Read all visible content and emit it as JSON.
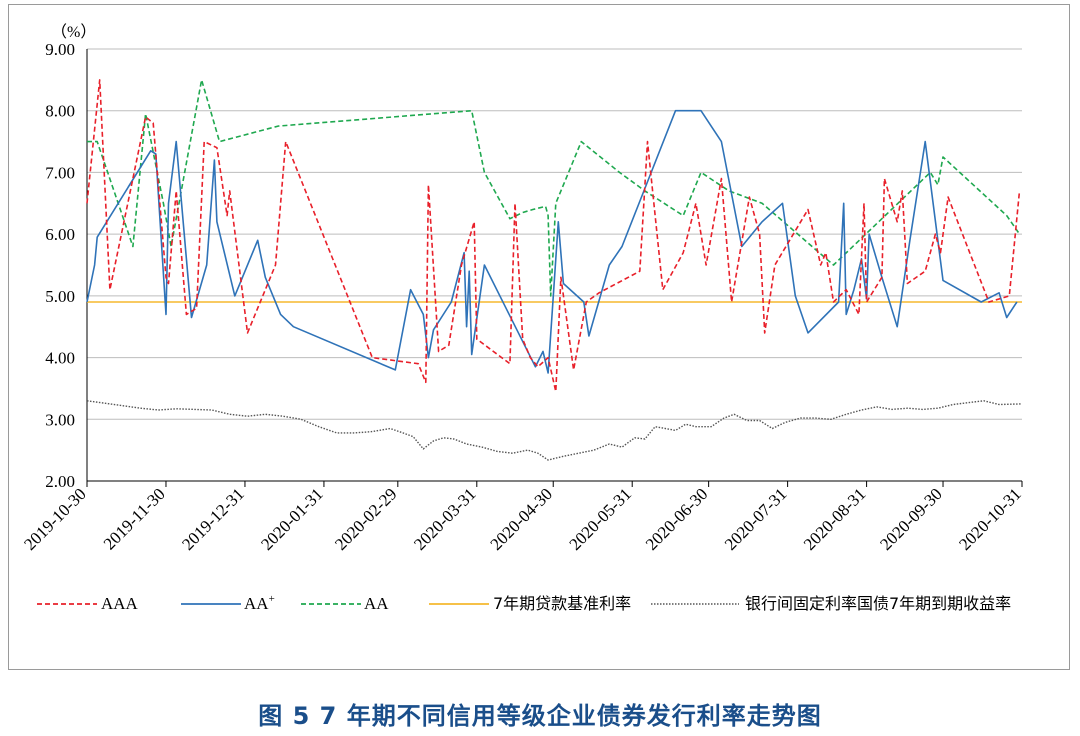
{
  "caption": "图 5 7 年期不同信用等级企业债券发行利率走势图",
  "chart_data": {
    "type": "line",
    "title": "",
    "y_unit": "（%）",
    "ylim": [
      2.0,
      9.0
    ],
    "yticks": [
      "2.00",
      "3.00",
      "4.00",
      "5.00",
      "6.00",
      "7.00",
      "8.00",
      "9.00"
    ],
    "xlim": [
      "2019-10-30",
      "2020-10-31"
    ],
    "xticks": [
      "2019-10-30",
      "2019-11-30",
      "2019-12-31",
      "2020-01-31",
      "2020-02-29",
      "2020-03-31",
      "2020-04-30",
      "2020-05-31",
      "2020-06-30",
      "2020-07-31",
      "2020-08-31",
      "2020-09-30",
      "2020-10-31"
    ],
    "grid": "horizontal",
    "legend_position": "bottom",
    "series": [
      {
        "name": "AAA",
        "legend_label": "AAA",
        "sup": "",
        "color": "#e8202a",
        "style": "dash",
        "points": [
          [
            "2019-10-30",
            6.5
          ],
          [
            "2019-11-04",
            8.5
          ],
          [
            "2019-11-08",
            5.1
          ],
          [
            "2019-11-15",
            6.5
          ],
          [
            "2019-11-22",
            7.9
          ],
          [
            "2019-11-25",
            7.8
          ],
          [
            "2019-11-30",
            5.3
          ],
          [
            "2019-12-01",
            5.2
          ],
          [
            "2019-12-04",
            6.7
          ],
          [
            "2019-12-08",
            4.7
          ],
          [
            "2019-12-12",
            4.8
          ],
          [
            "2019-12-15",
            7.5
          ],
          [
            "2019-12-20",
            7.4
          ],
          [
            "2019-12-24",
            6.3
          ],
          [
            "2019-12-25",
            6.7
          ],
          [
            "2020-01-01",
            4.4
          ],
          [
            "2020-01-12",
            5.5
          ],
          [
            "2020-01-16",
            7.5
          ],
          [
            "2020-02-19",
            4.0
          ],
          [
            "2020-03-08",
            3.9
          ],
          [
            "2020-03-11",
            3.6
          ],
          [
            "2020-03-12",
            6.8
          ],
          [
            "2020-03-16",
            4.1
          ],
          [
            "2020-03-20",
            4.2
          ],
          [
            "2020-03-25",
            5.5
          ],
          [
            "2020-03-30",
            6.2
          ],
          [
            "2020-03-31",
            4.3
          ],
          [
            "2020-04-13",
            3.9
          ],
          [
            "2020-04-15",
            6.5
          ],
          [
            "2020-04-18",
            4.3
          ],
          [
            "2020-04-21",
            4.0
          ],
          [
            "2020-04-24",
            3.85
          ],
          [
            "2020-04-28",
            4.0
          ],
          [
            "2020-05-01",
            3.45
          ],
          [
            "2020-05-03",
            5.3
          ],
          [
            "2020-05-08",
            3.8
          ],
          [
            "2020-05-13",
            4.9
          ],
          [
            "2020-05-18",
            5.05
          ],
          [
            "2020-06-03",
            5.4
          ],
          [
            "2020-06-06",
            7.5
          ],
          [
            "2020-06-12",
            5.1
          ],
          [
            "2020-06-20",
            5.7
          ],
          [
            "2020-06-25",
            6.5
          ],
          [
            "2020-06-29",
            5.5
          ],
          [
            "2020-07-05",
            6.9
          ],
          [
            "2020-07-09",
            4.9
          ],
          [
            "2020-07-16",
            6.6
          ],
          [
            "2020-07-20",
            6.0
          ],
          [
            "2020-07-22",
            4.4
          ],
          [
            "2020-07-26",
            5.5
          ],
          [
            "2020-08-08",
            6.4
          ],
          [
            "2020-08-13",
            5.5
          ],
          [
            "2020-08-15",
            5.7
          ],
          [
            "2020-08-18",
            4.9
          ],
          [
            "2020-08-23",
            5.1
          ],
          [
            "2020-08-28",
            4.7
          ],
          [
            "2020-08-30",
            6.5
          ],
          [
            "2020-08-31",
            4.9
          ],
          [
            "2020-09-06",
            5.3
          ],
          [
            "2020-09-07",
            6.9
          ],
          [
            "2020-09-12",
            6.2
          ],
          [
            "2020-09-14",
            6.7
          ],
          [
            "2020-09-16",
            5.2
          ],
          [
            "2020-09-23",
            5.4
          ],
          [
            "2020-09-27",
            6.0
          ],
          [
            "2020-09-29",
            5.7
          ],
          [
            "2020-10-02",
            6.6
          ],
          [
            "2020-10-18",
            4.9
          ],
          [
            "2020-10-26",
            5.0
          ],
          [
            "2020-10-30",
            6.7
          ]
        ]
      },
      {
        "name": "AA+",
        "legend_label": "AA",
        "sup": "+",
        "color": "#2f73b8",
        "style": "solid",
        "points": [
          [
            "2019-10-30",
            4.9
          ],
          [
            "2019-11-02",
            5.5
          ],
          [
            "2019-11-03",
            5.95
          ],
          [
            "2019-11-24",
            7.35
          ],
          [
            "2019-11-26",
            7.3
          ],
          [
            "2019-11-30",
            4.7
          ],
          [
            "2019-11-31",
            6.5
          ],
          [
            "2019-12-04",
            7.5
          ],
          [
            "2019-12-10",
            4.65
          ],
          [
            "2019-12-16",
            5.5
          ],
          [
            "2019-12-19",
            7.2
          ],
          [
            "2019-12-20",
            6.2
          ],
          [
            "2019-12-27",
            5.0
          ],
          [
            "2020-01-05",
            5.9
          ],
          [
            "2020-01-08",
            5.3
          ],
          [
            "2020-01-14",
            4.7
          ],
          [
            "2020-01-19",
            4.5
          ],
          [
            "2020-02-28",
            3.8
          ],
          [
            "2020-03-05",
            5.1
          ],
          [
            "2020-03-10",
            4.7
          ],
          [
            "2020-03-12",
            4.0
          ],
          [
            "2020-03-14",
            4.45
          ],
          [
            "2020-03-21",
            4.9
          ],
          [
            "2020-03-26",
            5.7
          ],
          [
            "2020-03-27",
            4.5
          ],
          [
            "2020-03-28",
            5.4
          ],
          [
            "2020-03-29",
            4.05
          ],
          [
            "2020-04-03",
            5.5
          ],
          [
            "2020-04-23",
            3.85
          ],
          [
            "2020-04-26",
            4.1
          ],
          [
            "2020-04-28",
            3.75
          ],
          [
            "2020-05-02",
            6.2
          ],
          [
            "2020-05-04",
            5.2
          ],
          [
            "2020-05-12",
            4.9
          ],
          [
            "2020-05-14",
            4.35
          ],
          [
            "2020-05-22",
            5.5
          ],
          [
            "2020-05-27",
            5.8
          ],
          [
            "2020-06-17",
            8.0
          ],
          [
            "2020-06-27",
            8.0
          ],
          [
            "2020-07-05",
            7.5
          ],
          [
            "2020-07-13",
            5.8
          ],
          [
            "2020-07-21",
            6.2
          ],
          [
            "2020-07-29",
            6.5
          ],
          [
            "2020-08-03",
            5.0
          ],
          [
            "2020-08-08",
            4.4
          ],
          [
            "2020-08-20",
            4.9
          ],
          [
            "2020-08-22",
            6.5
          ],
          [
            "2020-08-23",
            4.7
          ],
          [
            "2020-08-26",
            5.1
          ],
          [
            "2020-08-29",
            5.6
          ],
          [
            "2020-08-31",
            4.95
          ],
          [
            "2020-09-01",
            6.0
          ],
          [
            "2020-09-06",
            5.3
          ],
          [
            "2020-09-12",
            4.5
          ],
          [
            "2020-09-17",
            5.9
          ],
          [
            "2020-09-23",
            7.5
          ],
          [
            "2020-09-30",
            5.25
          ],
          [
            "2020-10-15",
            4.9
          ],
          [
            "2020-10-22",
            5.05
          ],
          [
            "2020-10-25",
            4.65
          ],
          [
            "2020-10-29",
            4.9
          ]
        ]
      },
      {
        "name": "AA",
        "legend_label": "AA",
        "sup": "",
        "color": "#1fa84f",
        "style": "dash",
        "points": [
          [
            "2019-10-30",
            7.5
          ],
          [
            "2019-11-03",
            7.5
          ],
          [
            "2019-11-17",
            5.8
          ],
          [
            "2019-11-22",
            7.95
          ],
          [
            "2019-11-29",
            6.5
          ],
          [
            "2019-12-02",
            5.8
          ],
          [
            "2019-12-14",
            8.5
          ],
          [
            "2019-12-21",
            7.5
          ],
          [
            "2020-01-13",
            7.75
          ],
          [
            "2020-03-29",
            8.0
          ],
          [
            "2020-04-03",
            7.0
          ],
          [
            "2020-04-13",
            6.25
          ],
          [
            "2020-04-18",
            6.35
          ],
          [
            "2020-04-22",
            6.4
          ],
          [
            "2020-04-27",
            6.45
          ],
          [
            "2020-04-28",
            6.3
          ],
          [
            "2020-04-29",
            5.0
          ],
          [
            "2020-05-01",
            6.5
          ],
          [
            "2020-05-11",
            7.5
          ],
          [
            "2020-05-26",
            7.0
          ],
          [
            "2020-06-05",
            6.7
          ],
          [
            "2020-06-20",
            6.3
          ],
          [
            "2020-06-27",
            7.0
          ],
          [
            "2020-07-08",
            6.7
          ],
          [
            "2020-07-21",
            6.5
          ],
          [
            "2020-08-18",
            5.5
          ],
          [
            "2020-09-25",
            7.0
          ],
          [
            "2020-09-28",
            6.8
          ],
          [
            "2020-09-30",
            7.25
          ],
          [
            "2020-10-25",
            6.3
          ],
          [
            "2020-10-30",
            6.0
          ]
        ]
      },
      {
        "name": "7年期贷款基准利率",
        "legend_label": "7年期贷款基准利率",
        "sup": "",
        "color": "#f5b82e",
        "style": "solid",
        "points": [
          [
            "2019-10-30",
            4.9
          ],
          [
            "2020-10-31",
            4.9
          ]
        ]
      },
      {
        "name": "银行间固定利率国债7年期到期收益率",
        "legend_label": "银行间固定利率国债7年期到期收益率",
        "sup": "",
        "color": "#555555",
        "style": "dot",
        "points": [
          [
            "2019-10-30",
            3.3
          ],
          [
            "2019-11-06",
            3.26
          ],
          [
            "2019-11-13",
            3.22
          ],
          [
            "2019-11-20",
            3.18
          ],
          [
            "2019-11-27",
            3.15
          ],
          [
            "2019-12-04",
            3.17
          ],
          [
            "2019-12-11",
            3.16
          ],
          [
            "2019-12-18",
            3.15
          ],
          [
            "2019-12-25",
            3.08
          ],
          [
            "2020-01-01",
            3.05
          ],
          [
            "2020-01-08",
            3.08
          ],
          [
            "2020-01-15",
            3.05
          ],
          [
            "2020-01-22",
            3.0
          ],
          [
            "2020-01-29",
            2.88
          ],
          [
            "2020-02-05",
            2.78
          ],
          [
            "2020-02-12",
            2.78
          ],
          [
            "2020-02-19",
            2.8
          ],
          [
            "2020-02-26",
            2.85
          ],
          [
            "2020-03-02",
            2.78
          ],
          [
            "2020-03-06",
            2.72
          ],
          [
            "2020-03-10",
            2.52
          ],
          [
            "2020-03-14",
            2.65
          ],
          [
            "2020-03-18",
            2.7
          ],
          [
            "2020-03-22",
            2.68
          ],
          [
            "2020-03-27",
            2.6
          ],
          [
            "2020-04-02",
            2.55
          ],
          [
            "2020-04-08",
            2.48
          ],
          [
            "2020-04-14",
            2.45
          ],
          [
            "2020-04-20",
            2.5
          ],
          [
            "2020-04-24",
            2.45
          ],
          [
            "2020-04-28",
            2.34
          ],
          [
            "2020-05-04",
            2.4
          ],
          [
            "2020-05-10",
            2.45
          ],
          [
            "2020-05-16",
            2.5
          ],
          [
            "2020-05-22",
            2.6
          ],
          [
            "2020-05-27",
            2.55
          ],
          [
            "2020-06-01",
            2.7
          ],
          [
            "2020-06-05",
            2.68
          ],
          [
            "2020-06-09",
            2.88
          ],
          [
            "2020-06-13",
            2.85
          ],
          [
            "2020-06-17",
            2.82
          ],
          [
            "2020-06-21",
            2.92
          ],
          [
            "2020-06-25",
            2.88
          ],
          [
            "2020-07-01",
            2.88
          ],
          [
            "2020-07-06",
            3.02
          ],
          [
            "2020-07-10",
            3.08
          ],
          [
            "2020-07-15",
            2.98
          ],
          [
            "2020-07-20",
            2.98
          ],
          [
            "2020-07-25",
            2.85
          ],
          [
            "2020-07-30",
            2.95
          ],
          [
            "2020-08-05",
            3.02
          ],
          [
            "2020-08-11",
            3.02
          ],
          [
            "2020-08-17",
            3.0
          ],
          [
            "2020-08-23",
            3.08
          ],
          [
            "2020-08-29",
            3.15
          ],
          [
            "2020-09-04",
            3.2
          ],
          [
            "2020-09-10",
            3.16
          ],
          [
            "2020-09-16",
            3.18
          ],
          [
            "2020-09-22",
            3.16
          ],
          [
            "2020-09-28",
            3.18
          ],
          [
            "2020-10-04",
            3.24
          ],
          [
            "2020-10-10",
            3.27
          ],
          [
            "2020-10-16",
            3.3
          ],
          [
            "2020-10-22",
            3.24
          ],
          [
            "2020-10-31",
            3.25
          ]
        ]
      }
    ]
  }
}
